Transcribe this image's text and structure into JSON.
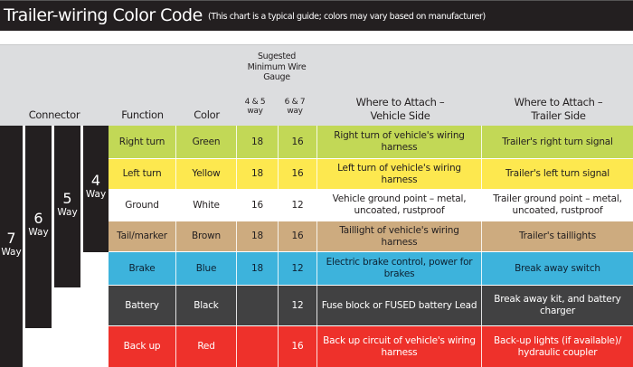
{
  "title": "Trailer-wiring Color Code",
  "subtitle": "(This chart is a typical guide; colors may vary based on manufacturer)",
  "headers": {
    "connector": "Connector",
    "function": "Function",
    "color": "Color",
    "gauge_group": "Sugested Minimum Wire Gauge",
    "gauge_45": "4 & 5 way",
    "gauge_67": "6 & 7 way",
    "vehicle_side": "Where to Attach – Vehicle Side",
    "trailer_side": "Where to Attach – Trailer Side"
  },
  "connectors": [
    {
      "num": "7",
      "label": "Way"
    },
    {
      "num": "6",
      "label": "Way"
    },
    {
      "num": "5",
      "label": "Way"
    },
    {
      "num": "4",
      "label": "Way"
    }
  ],
  "rows": [
    {
      "function": "Right turn",
      "color": "Green",
      "g45": "18",
      "g67": "16",
      "vehicle": "Right turn of vehicle's wiring harness",
      "trailer": "Trailer's right turn signal",
      "bg": "#c2d856",
      "fg": "#231f20"
    },
    {
      "function": "Left turn",
      "color": "Yellow",
      "g45": "18",
      "g67": "16",
      "vehicle": "Left turn of vehicle's wiring harness",
      "trailer": "Trailer's left turn signal",
      "bg": "#fde84f",
      "fg": "#231f20"
    },
    {
      "function": "Ground",
      "color": "White",
      "g45": "16",
      "g67": "12",
      "vehicle": "Vehicle ground point – metal, uncoated, rustproof",
      "trailer": "Trailer ground point – metal, uncoated, rustproof",
      "bg": "#ffffff",
      "fg": "#231f20"
    },
    {
      "function": "Tail/marker",
      "color": "Brown",
      "g45": "18",
      "g67": "16",
      "vehicle": "Taillight of vehicle's wiring harness",
      "trailer": "Trailer's taillights",
      "bg": "#cdab7f",
      "fg": "#231f20"
    },
    {
      "function": "Brake",
      "color": "Blue",
      "g45": "18",
      "g67": "12",
      "vehicle": "Electric brake control, power for brakes",
      "trailer": "Break away switch",
      "bg": "#3db3dc",
      "fg": "#0d2233"
    },
    {
      "function": "Battery",
      "color": "Black",
      "g45": "",
      "g67": "12",
      "vehicle": "Fuse block or FUSED battery Lead",
      "trailer": "Break away kit, and battery charger",
      "bg": "#414142",
      "fg": "#ffffff"
    },
    {
      "function": "Back up",
      "color": "Red",
      "g45": "",
      "g67": "16",
      "vehicle": "Back up circuit of vehicle's wiring harness",
      "trailer": "Back-up lights (if available)/ hydraulic coupler",
      "bg": "#ee312b",
      "fg": "#ffffff"
    }
  ]
}
